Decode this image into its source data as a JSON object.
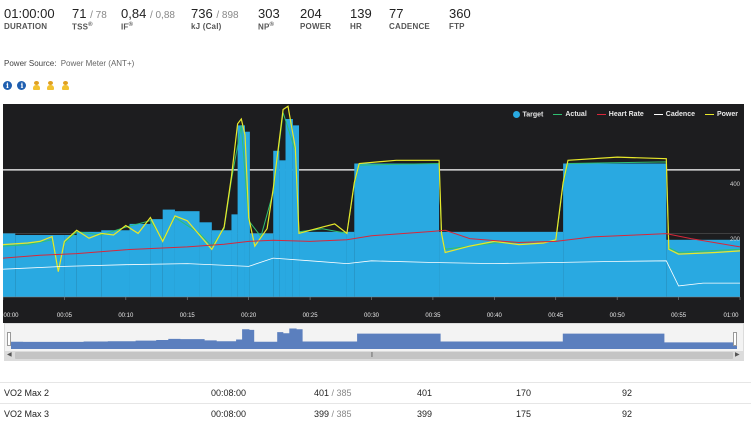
{
  "stats": [
    {
      "value": "01:00:00",
      "sub": "",
      "label": "DURATION",
      "sup": ""
    },
    {
      "value": "71",
      "sub": "/ 78",
      "label": "TSS",
      "sup": "®"
    },
    {
      "value": "0,84",
      "sub": "/ 0,88",
      "label": "IF",
      "sup": "®"
    },
    {
      "value": "736",
      "sub": "/ 898",
      "label": "kJ (Cal)",
      "sup": ""
    },
    {
      "value": "303",
      "sub": "",
      "label": "NP",
      "sup": "®"
    },
    {
      "value": "204",
      "sub": "",
      "label": "POWER",
      "sup": ""
    },
    {
      "value": "139",
      "sub": "",
      "label": "HR",
      "sup": ""
    },
    {
      "value": "77",
      "sub": "",
      "label": "CADENCE",
      "sup": ""
    },
    {
      "value": "360",
      "sub": "",
      "label": "FTP",
      "sup": ""
    }
  ],
  "power_source": {
    "label": "Power Source:",
    "value": "Power Meter (ANT+)"
  },
  "icons": [
    "info-icon",
    "info-icon",
    "person-icon",
    "person-icon",
    "person-icon"
  ],
  "colors": {
    "target": "#29a9e1",
    "actual": "#2fbf71",
    "heart_rate": "#d8273a",
    "cadence": "#ffffff",
    "power": "#e8e82a",
    "background": "#1d1d1f"
  },
  "chart_data": {
    "type": "area",
    "title": "",
    "legend_placement": "top-right",
    "series_labels": [
      "Target",
      "Actual",
      "Heart Rate",
      "Cadence",
      "Power"
    ],
    "xlabel": "",
    "ylabel": "",
    "x_ticks": [
      "00:00",
      "00:05",
      "00:10",
      "00:15",
      "00:20",
      "00:25",
      "00:30",
      "00:35",
      "00:40",
      "00:45",
      "00:50",
      "00:55",
      "01:00"
    ],
    "y_ticks": [
      "200",
      "400"
    ],
    "x_range_min": [
      0,
      60
    ],
    "y_range_watts": [
      0,
      560
    ],
    "hr_range": [
      0,
      320
    ],
    "target_steps": [
      [
        0,
        1,
        200
      ],
      [
        1,
        5,
        195
      ],
      [
        5,
        6,
        195
      ],
      [
        6,
        8,
        205
      ],
      [
        8,
        10.3,
        210
      ],
      [
        10.3,
        12,
        230
      ],
      [
        12,
        13,
        245
      ],
      [
        13,
        14,
        275
      ],
      [
        14,
        16,
        270
      ],
      [
        16,
        17,
        235
      ],
      [
        17,
        18.6,
        210
      ],
      [
        18.6,
        19.1,
        260
      ],
      [
        19.1,
        19.7,
        540
      ],
      [
        19.7,
        20.1,
        520
      ],
      [
        20.1,
        22,
        200
      ],
      [
        22,
        22.5,
        460
      ],
      [
        22.5,
        23,
        430
      ],
      [
        23,
        23.6,
        560
      ],
      [
        23.6,
        24.1,
        540
      ],
      [
        24.1,
        28,
        205
      ],
      [
        28,
        28.6,
        205
      ],
      [
        28.6,
        35.5,
        420
      ],
      [
        35.5,
        45.6,
        205
      ],
      [
        45.6,
        54,
        420
      ],
      [
        54,
        60,
        180
      ]
    ],
    "power_pts": [
      [
        0,
        165
      ],
      [
        2,
        170
      ],
      [
        3,
        175
      ],
      [
        4,
        190
      ],
      [
        4.5,
        80
      ],
      [
        5,
        175
      ],
      [
        6,
        210
      ],
      [
        7,
        185
      ],
      [
        8,
        200
      ],
      [
        9,
        195
      ],
      [
        10,
        225
      ],
      [
        11,
        200
      ],
      [
        12,
        250
      ],
      [
        13,
        175
      ],
      [
        14,
        255
      ],
      [
        15,
        240
      ],
      [
        16,
        195
      ],
      [
        17,
        150
      ],
      [
        18,
        220
      ],
      [
        18.6,
        380
      ],
      [
        19.1,
        545
      ],
      [
        19.4,
        560
      ],
      [
        19.7,
        510
      ],
      [
        20,
        250
      ],
      [
        20.5,
        160
      ],
      [
        21.5,
        215
      ],
      [
        22,
        340
      ],
      [
        22.8,
        590
      ],
      [
        23.2,
        600
      ],
      [
        23.8,
        470
      ],
      [
        24.1,
        200
      ],
      [
        25,
        210
      ],
      [
        26,
        220
      ],
      [
        27,
        230
      ],
      [
        28,
        200
      ],
      [
        28.6,
        360
      ],
      [
        29,
        420
      ],
      [
        32,
        430
      ],
      [
        35.5,
        430
      ],
      [
        35.7,
        200
      ],
      [
        36,
        140
      ],
      [
        38,
        160
      ],
      [
        40,
        175
      ],
      [
        42,
        165
      ],
      [
        44,
        170
      ],
      [
        45,
        180
      ],
      [
        45.6,
        360
      ],
      [
        46,
        430
      ],
      [
        50,
        440
      ],
      [
        54,
        435
      ],
      [
        54.2,
        150
      ],
      [
        55,
        135
      ],
      [
        58,
        140
      ],
      [
        60,
        145
      ]
    ],
    "actual_pts": [
      [
        0,
        160
      ],
      [
        2,
        165
      ],
      [
        4,
        180
      ],
      [
        4.5,
        85
      ],
      [
        5,
        170
      ],
      [
        6,
        205
      ],
      [
        8,
        195
      ],
      [
        10,
        220
      ],
      [
        12,
        240
      ],
      [
        13,
        180
      ],
      [
        14,
        250
      ],
      [
        16,
        200
      ],
      [
        17,
        160
      ],
      [
        18,
        215
      ],
      [
        18.6,
        370
      ],
      [
        19.4,
        540
      ],
      [
        20,
        240
      ],
      [
        21,
        190
      ],
      [
        22,
        330
      ],
      [
        22.8,
        580
      ],
      [
        23.8,
        460
      ],
      [
        24.1,
        205
      ],
      [
        26,
        215
      ],
      [
        28,
        200
      ],
      [
        28.6,
        355
      ],
      [
        29,
        415
      ],
      [
        35.5,
        420
      ],
      [
        35.7,
        195
      ],
      [
        36,
        150
      ],
      [
        40,
        170
      ],
      [
        45,
        175
      ],
      [
        45.6,
        355
      ],
      [
        46,
        420
      ],
      [
        54,
        425
      ],
      [
        54.2,
        155
      ],
      [
        55,
        140
      ],
      [
        60,
        150
      ]
    ],
    "hr_pts": [
      [
        0,
        70
      ],
      [
        3,
        75
      ],
      [
        6,
        78
      ],
      [
        10,
        85
      ],
      [
        15,
        90
      ],
      [
        18,
        95
      ],
      [
        20,
        100
      ],
      [
        22,
        102
      ],
      [
        25,
        100
      ],
      [
        28,
        103
      ],
      [
        30,
        110
      ],
      [
        35,
        118
      ],
      [
        36,
        120
      ],
      [
        38,
        105
      ],
      [
        42,
        98
      ],
      [
        45,
        100
      ],
      [
        48,
        108
      ],
      [
        52,
        112
      ],
      [
        54,
        114
      ],
      [
        56,
        105
      ],
      [
        60,
        90
      ]
    ],
    "cadence_pts": [
      [
        0,
        50
      ],
      [
        5,
        55
      ],
      [
        10,
        58
      ],
      [
        15,
        60
      ],
      [
        20,
        55
      ],
      [
        22,
        70
      ],
      [
        25,
        65
      ],
      [
        28,
        60
      ],
      [
        30,
        65
      ],
      [
        35,
        62
      ],
      [
        40,
        60
      ],
      [
        45,
        62
      ],
      [
        50,
        64
      ],
      [
        54,
        65
      ],
      [
        55,
        20
      ],
      [
        57,
        25
      ],
      [
        60,
        25
      ]
    ]
  },
  "table": {
    "rows": [
      {
        "name": "VO2 Max 2",
        "duration": "00:08:00",
        "power": "401",
        "power_sub": "/ 385",
        "avg": "401",
        "hr": "170",
        "cad": "92"
      },
      {
        "name": "VO2 Max 3",
        "duration": "00:08:00",
        "power": "399",
        "power_sub": "/ 385",
        "avg": "399",
        "hr": "175",
        "cad": "92"
      }
    ]
  }
}
